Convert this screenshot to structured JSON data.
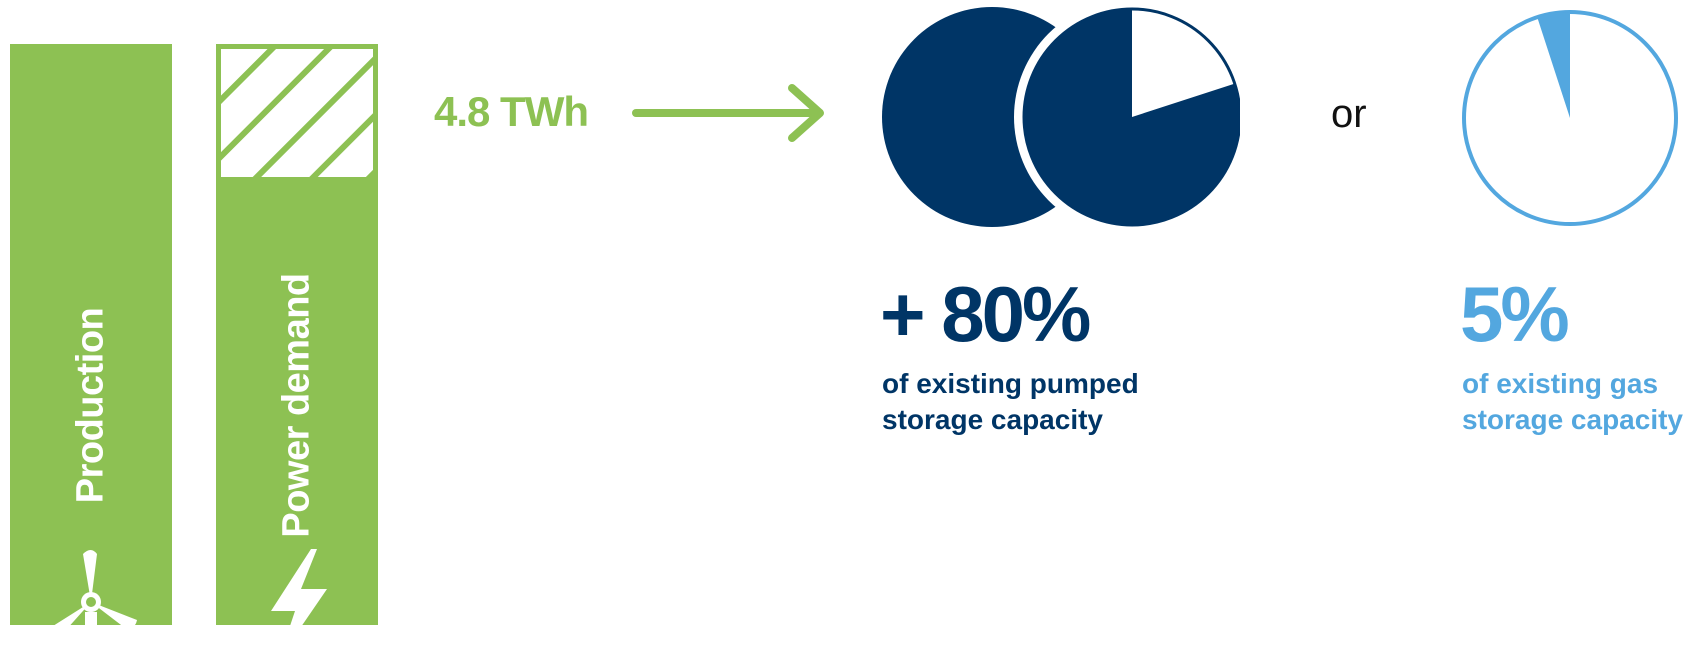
{
  "colors": {
    "green": "#8dc153",
    "navy": "#003566",
    "sky": "#53a7df"
  },
  "bars": {
    "production": {
      "label": "Production",
      "icon": "wind-turbine-icon"
    },
    "power_demand": {
      "label": "Power demand",
      "icon": "lightning-bolt-icon",
      "surplus_fraction": 0.23
    }
  },
  "energy": {
    "amount": "4.8 TWh",
    "arrow_icon": "arrow-right-icon"
  },
  "pumped_storage": {
    "percent": "+ 80%",
    "caption_line1": "of existing pumped",
    "caption_line2": "storage capacity",
    "full_circles": 1,
    "partial_fraction": 0.8
  },
  "separator": "or",
  "gas_storage": {
    "percent": "5%",
    "caption_line1": "of existing gas",
    "caption_line2": "storage capacity",
    "fill_fraction": 0.05
  }
}
